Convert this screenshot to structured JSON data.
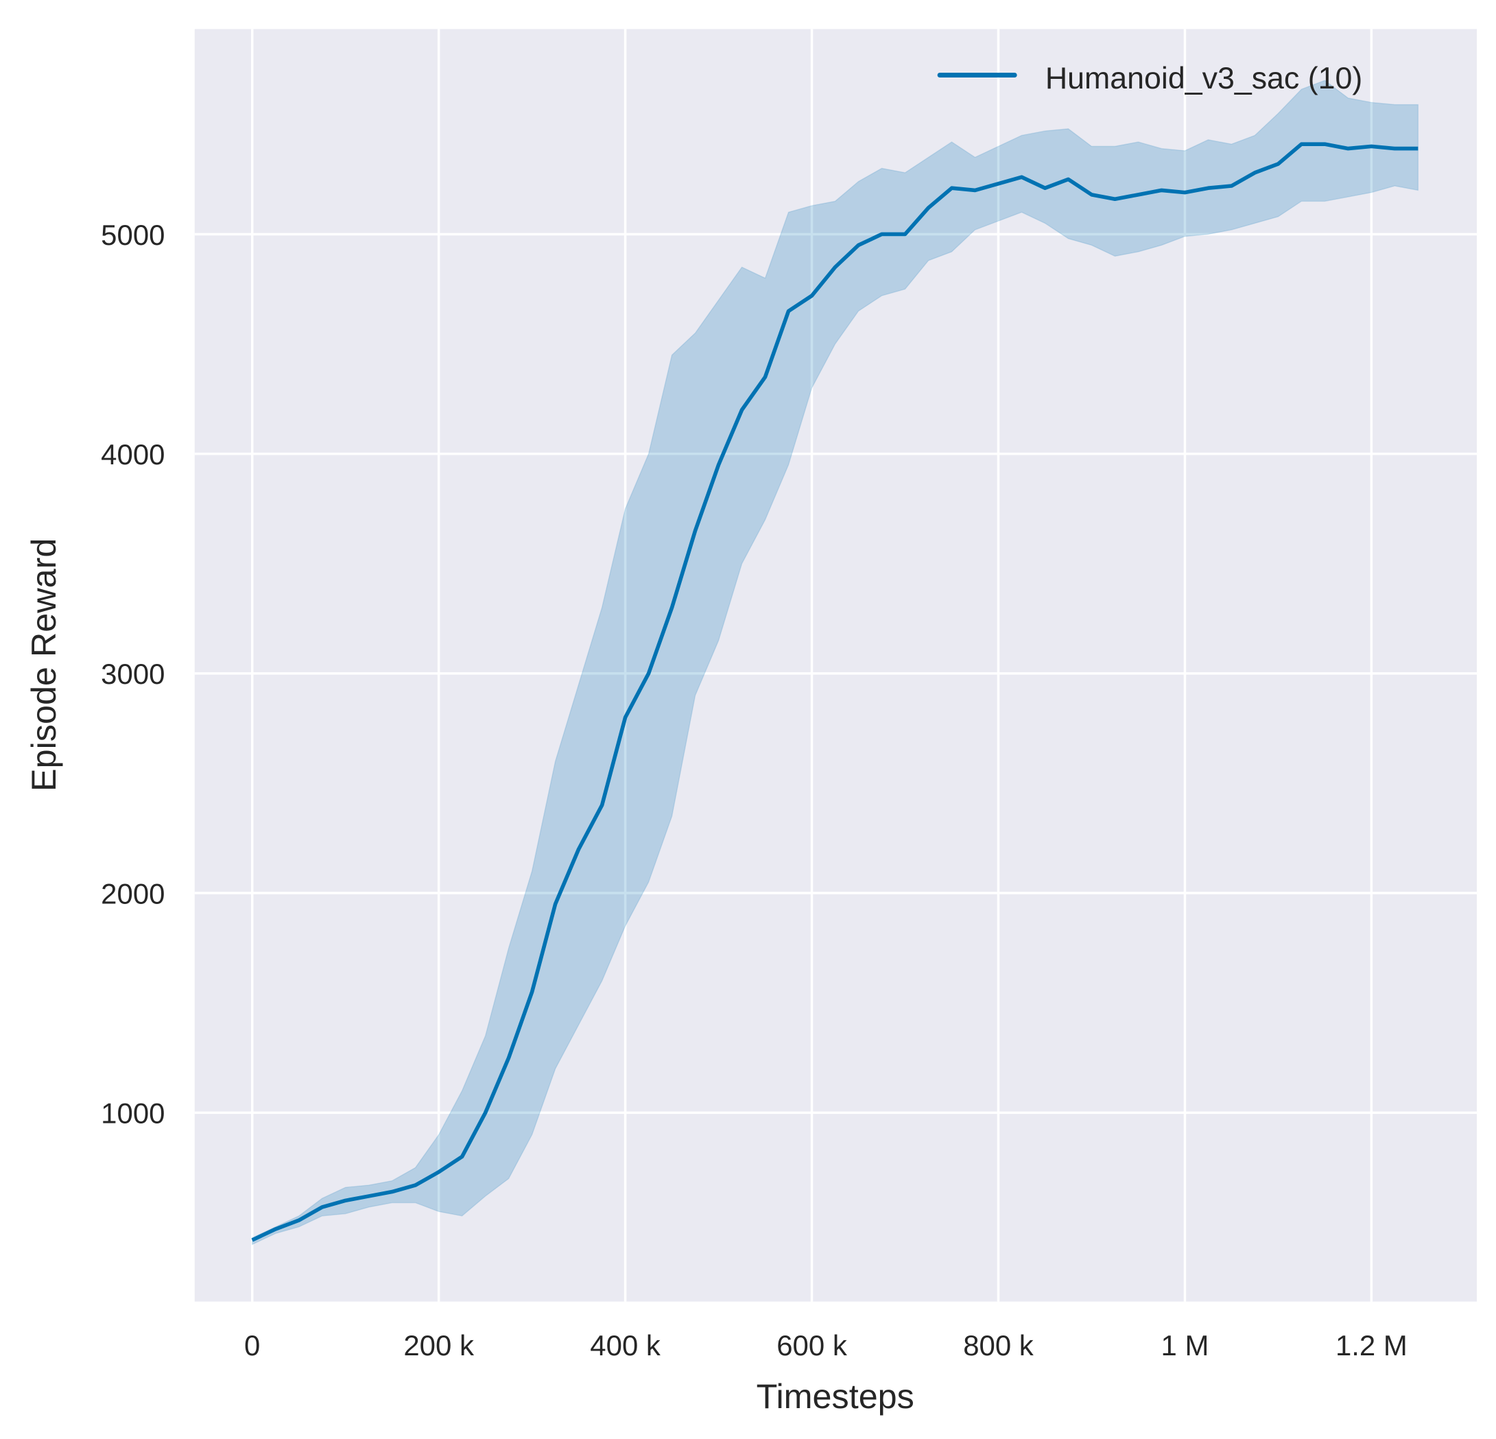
{
  "chart_data": {
    "type": "line",
    "title": "",
    "xlabel": "Timesteps",
    "ylabel": "Episode Reward",
    "xlim": [
      -61700,
      1313000
    ],
    "ylim": [
      140,
      5934
    ],
    "grid": true,
    "legend_placement": "top-right",
    "x_ticks": [
      0,
      200000,
      400000,
      600000,
      800000,
      1000000,
      1200000
    ],
    "x_tick_labels": [
      "0",
      "200 k",
      "400 k",
      "600 k",
      "800 k",
      "1 M",
      "1.2 M"
    ],
    "y_ticks": [
      1000,
      2000,
      3000,
      4000,
      5000
    ],
    "y_tick_labels": [
      "1000",
      "2000",
      "3000",
      "4000",
      "5000"
    ],
    "colors": {
      "line": "#0072b2",
      "band": "#0072b2",
      "background": "#eaeaf2",
      "grid": "#ffffff"
    },
    "x": [
      0,
      25000,
      50000,
      75000,
      100000,
      125000,
      150000,
      175000,
      200000,
      225000,
      250000,
      275000,
      300000,
      325000,
      350000,
      375000,
      400000,
      425000,
      450000,
      475000,
      500000,
      525000,
      550000,
      575000,
      600000,
      625000,
      650000,
      675000,
      700000,
      725000,
      750000,
      775000,
      800000,
      825000,
      850000,
      875000,
      900000,
      925000,
      950000,
      975000,
      1000000,
      1025000,
      1050000,
      1075000,
      1100000,
      1125000,
      1150000,
      1175000,
      1200000,
      1225000,
      1250000
    ],
    "series": [
      {
        "name": "Humanoid_v3_sac (10)",
        "mean": [
          420,
          470,
          510,
          570,
          600,
          620,
          640,
          670,
          730,
          800,
          1000,
          1250,
          1550,
          1950,
          2200,
          2400,
          2800,
          3000,
          3300,
          3650,
          3950,
          4200,
          4350,
          4650,
          4720,
          4850,
          4950,
          5000,
          5000,
          5120,
          5210,
          5200,
          5230,
          5260,
          5210,
          5250,
          5180,
          5160,
          5180,
          5200,
          5190,
          5210,
          5220,
          5280,
          5320,
          5410,
          5410,
          5390,
          5400,
          5390,
          5390
        ],
        "upper": [
          430,
          480,
          530,
          610,
          660,
          670,
          690,
          750,
          900,
          1100,
          1350,
          1750,
          2100,
          2600,
          2950,
          3300,
          3750,
          4000,
          4450,
          4550,
          4700,
          4850,
          4800,
          5100,
          5130,
          5150,
          5240,
          5300,
          5280,
          5350,
          5420,
          5350,
          5400,
          5450,
          5470,
          5480,
          5400,
          5400,
          5420,
          5390,
          5380,
          5430,
          5410,
          5450,
          5550,
          5660,
          5700,
          5620,
          5600,
          5590,
          5590
        ],
        "lower": [
          400,
          450,
          480,
          530,
          540,
          570,
          590,
          590,
          550,
          530,
          620,
          700,
          900,
          1200,
          1400,
          1600,
          1850,
          2050,
          2350,
          2900,
          3150,
          3500,
          3700,
          3950,
          4300,
          4500,
          4650,
          4720,
          4750,
          4880,
          4920,
          5020,
          5060,
          5100,
          5050,
          4980,
          4950,
          4900,
          4920,
          4950,
          4990,
          5000,
          5020,
          5050,
          5080,
          5150,
          5150,
          5170,
          5190,
          5220,
          5200
        ]
      }
    ]
  }
}
